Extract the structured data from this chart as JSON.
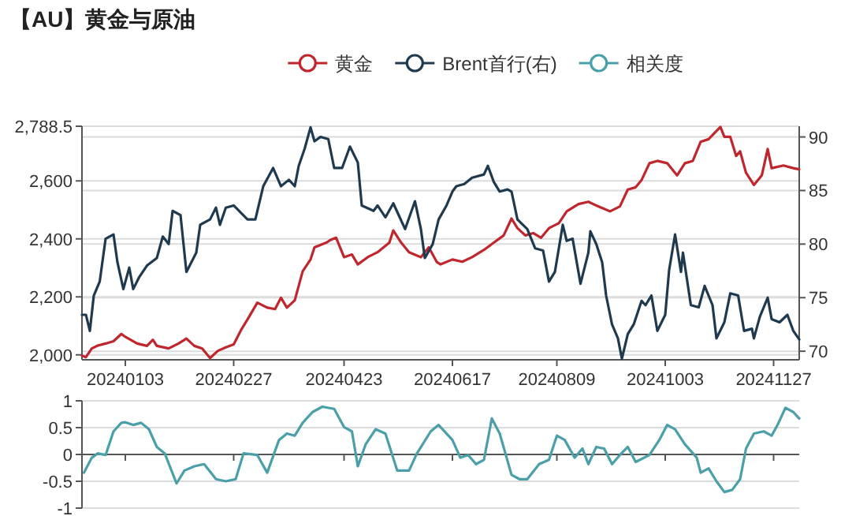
{
  "chart_data": [
    {
      "type": "line",
      "title": "【AU】黄金与原油",
      "legend": "top",
      "grid": "y",
      "tick_labels": "xy",
      "xlim": [
        "2023-12-12",
        "2024-12-10"
      ],
      "xticks": [
        {
          "value": "2024-01-03",
          "label": "20240103"
        },
        {
          "value": "2024-02-27",
          "label": "20240227"
        },
        {
          "value": "2024-04-23",
          "label": "20240423"
        },
        {
          "value": "2024-06-17",
          "label": "20240617"
        },
        {
          "value": "2024-08-09",
          "label": "20240809"
        },
        {
          "value": "2024-10-03",
          "label": "20241003"
        },
        {
          "value": "2024-11-27",
          "label": "20241127"
        }
      ],
      "ylim": [
        1983,
        2788.5
      ],
      "yticks": [
        {
          "value": 2000,
          "label": "2,000"
        },
        {
          "value": 2200,
          "label": "2,200"
        },
        {
          "value": 2400,
          "label": "2,400"
        },
        {
          "value": 2600,
          "label": "2,600"
        },
        {
          "value": 2788.5,
          "label": "2,788.5"
        }
      ],
      "y2lim": [
        69.2,
        91
      ],
      "y2ticks": [
        70,
        75,
        80,
        85,
        90
      ],
      "series": [
        {
          "name": "黄金",
          "color": "#c0262d",
          "axis": "y",
          "x": [
            "2023-12-12",
            "2023-12-14",
            "2023-12-17",
            "2023-12-20",
            "2023-12-24",
            "2023-12-28",
            "2024-01-01",
            "2024-01-03",
            "2024-01-09",
            "2024-01-14",
            "2024-01-17",
            "2024-01-19",
            "2024-01-25",
            "2024-01-30",
            "2024-02-03",
            "2024-02-07",
            "2024-02-11",
            "2024-02-15",
            "2024-02-19",
            "2024-02-23",
            "2024-02-27",
            "2024-03-02",
            "2024-03-05",
            "2024-03-10",
            "2024-03-15",
            "2024-03-19",
            "2024-03-22",
            "2024-03-25",
            "2024-03-29",
            "2024-04-02",
            "2024-04-06",
            "2024-04-08",
            "2024-04-14",
            "2024-04-16",
            "2024-04-19",
            "2024-04-23",
            "2024-04-27",
            "2024-04-30",
            "2024-05-05",
            "2024-05-10",
            "2024-05-16",
            "2024-05-18",
            "2024-05-22",
            "2024-05-26",
            "2024-06-01",
            "2024-06-05",
            "2024-06-09",
            "2024-06-11",
            "2024-06-17",
            "2024-06-22",
            "2024-06-27",
            "2024-07-03",
            "2024-07-08",
            "2024-07-13",
            "2024-07-17",
            "2024-07-20",
            "2024-07-24",
            "2024-07-28",
            "2024-08-01",
            "2024-08-05",
            "2024-08-10",
            "2024-08-14",
            "2024-08-20",
            "2024-08-25",
            "2024-08-30",
            "2024-09-05",
            "2024-09-10",
            "2024-09-14",
            "2024-09-18",
            "2024-09-21",
            "2024-09-25",
            "2024-09-29",
            "2024-10-04",
            "2024-10-09",
            "2024-10-13",
            "2024-10-17",
            "2024-10-21",
            "2024-10-25",
            "2024-10-31",
            "2024-11-02",
            "2024-11-05",
            "2024-11-08",
            "2024-11-10",
            "2024-11-13",
            "2024-11-17",
            "2024-11-21",
            "2024-11-24",
            "2024-11-26",
            "2024-12-02",
            "2024-12-07",
            "2024-12-10"
          ],
          "values": [
            1997,
            1992,
            2022,
            2032,
            2039,
            2047,
            2072,
            2062,
            2039,
            2031,
            2052,
            2031,
            2022,
            2039,
            2056,
            2031,
            2022,
            1989,
            2014,
            2026,
            2036,
            2089,
            2122,
            2180,
            2163,
            2158,
            2197,
            2163,
            2188,
            2288,
            2329,
            2371,
            2387,
            2396,
            2404,
            2337,
            2346,
            2312,
            2337,
            2354,
            2387,
            2429,
            2387,
            2354,
            2337,
            2371,
            2321,
            2312,
            2329,
            2321,
            2337,
            2362,
            2387,
            2412,
            2470,
            2437,
            2412,
            2420,
            2404,
            2437,
            2454,
            2495,
            2520,
            2528,
            2512,
            2495,
            2512,
            2570,
            2578,
            2603,
            2661,
            2669,
            2661,
            2619,
            2661,
            2669,
            2735,
            2744,
            2786,
            2752,
            2752,
            2686,
            2702,
            2628,
            2586,
            2619,
            2710,
            2644,
            2653,
            2644,
            2640
          ]
        },
        {
          "name": "Brent首行(右)",
          "color": "#1f3a4f",
          "axis": "y2",
          "x": [
            "2023-12-12",
            "2023-12-14",
            "2023-12-16",
            "2023-12-18",
            "2023-12-21",
            "2023-12-24",
            "2023-12-26",
            "2023-12-28",
            "2023-12-30",
            "2024-01-02",
            "2024-01-05",
            "2024-01-07",
            "2024-01-10",
            "2024-01-14",
            "2024-01-19",
            "2024-01-22",
            "2024-01-25",
            "2024-01-27",
            "2024-01-31",
            "2024-02-03",
            "2024-02-08",
            "2024-02-10",
            "2024-02-15",
            "2024-02-18",
            "2024-02-20",
            "2024-02-23",
            "2024-02-27",
            "2024-03-05",
            "2024-03-09",
            "2024-03-13",
            "2024-03-18",
            "2024-03-22",
            "2024-03-26",
            "2024-03-29",
            "2024-03-31",
            "2024-04-03",
            "2024-04-06",
            "2024-04-08",
            "2024-04-11",
            "2024-04-15",
            "2024-04-18",
            "2024-04-22",
            "2024-04-26",
            "2024-04-30",
            "2024-05-02",
            "2024-05-08",
            "2024-05-10",
            "2024-05-14",
            "2024-05-18",
            "2024-05-24",
            "2024-05-29",
            "2024-06-01",
            "2024-06-03",
            "2024-06-07",
            "2024-06-10",
            "2024-06-14",
            "2024-06-17",
            "2024-06-19",
            "2024-06-23",
            "2024-06-27",
            "2024-07-03",
            "2024-07-05",
            "2024-07-08",
            "2024-07-11",
            "2024-07-15",
            "2024-07-17",
            "2024-07-20",
            "2024-07-25",
            "2024-07-29",
            "2024-08-02",
            "2024-08-05",
            "2024-08-08",
            "2024-08-12",
            "2024-08-14",
            "2024-08-17",
            "2024-08-21",
            "2024-08-25",
            "2024-08-26",
            "2024-08-29",
            "2024-09-01",
            "2024-09-03",
            "2024-09-06",
            "2024-09-09",
            "2024-09-11",
            "2024-09-14",
            "2024-09-17",
            "2024-09-21",
            "2024-09-23",
            "2024-09-26",
            "2024-09-29",
            "2024-10-03",
            "2024-10-05",
            "2024-10-08",
            "2024-10-11",
            "2024-10-12",
            "2024-10-16",
            "2024-10-20",
            "2024-10-23",
            "2024-10-27",
            "2024-10-29",
            "2024-11-02",
            "2024-11-05",
            "2024-11-09",
            "2024-11-12",
            "2024-11-16",
            "2024-11-17",
            "2024-11-20",
            "2024-11-24",
            "2024-11-26",
            "2024-11-30",
            "2024-12-04",
            "2024-12-07",
            "2024-12-10"
          ],
          "values": [
            73.4,
            73.4,
            71.9,
            75.2,
            76.5,
            80.5,
            80.7,
            80.9,
            78.3,
            75.8,
            77.8,
            75.8,
            76.9,
            78.0,
            78.7,
            80.7,
            80.0,
            83.1,
            82.7,
            77.4,
            79.2,
            81.8,
            82.3,
            83.4,
            81.8,
            83.4,
            83.6,
            82.3,
            82.3,
            85.4,
            87.1,
            85.4,
            86.0,
            85.4,
            87.3,
            88.9,
            90.9,
            89.6,
            90.0,
            89.8,
            87.1,
            87.1,
            89.1,
            87.6,
            83.6,
            83.1,
            83.6,
            82.5,
            83.8,
            81.4,
            84.0,
            81.4,
            78.7,
            80.0,
            82.3,
            83.6,
            84.9,
            85.4,
            85.6,
            86.2,
            86.5,
            87.3,
            85.8,
            84.9,
            85.1,
            84.9,
            82.3,
            81.4,
            79.6,
            79.4,
            76.5,
            77.4,
            81.8,
            80.3,
            80.5,
            76.3,
            79.2,
            81.2,
            80.0,
            78.3,
            75.2,
            72.5,
            71.2,
            69.3,
            71.6,
            72.5,
            74.7,
            74.3,
            75.2,
            71.9,
            73.4,
            77.6,
            80.9,
            77.4,
            79.2,
            74.3,
            74.1,
            76.1,
            74.3,
            71.2,
            72.7,
            75.4,
            75.2,
            71.9,
            72.1,
            71.2,
            73.2,
            75.0,
            73.0,
            72.7,
            73.4,
            71.9,
            71.1
          ]
        }
      ]
    },
    {
      "type": "line",
      "legend": "top",
      "grid": "y",
      "tick_labels": "y",
      "xlim": [
        "2023-12-12",
        "2024-12-10"
      ],
      "xticks": [
        {
          "value": "2024-01-03",
          "label": null
        },
        {
          "value": "2024-02-27",
          "label": null
        },
        {
          "value": "2024-04-23",
          "label": null
        },
        {
          "value": "2024-06-17",
          "label": null
        },
        {
          "value": "2024-08-09",
          "label": null
        },
        {
          "value": "2024-10-03",
          "label": null
        },
        {
          "value": "2024-11-27",
          "label": null
        }
      ],
      "ylim": [
        -1,
        1
      ],
      "yticks": [
        -1,
        -0.5,
        0,
        0.5,
        1
      ],
      "series": [
        {
          "name": "相关度",
          "color": "#4a9fa8",
          "x": [
            "2023-12-13",
            "2023-12-17",
            "2023-12-20",
            "2023-12-24",
            "2023-12-28",
            "2024-01-01",
            "2024-01-03",
            "2024-01-07",
            "2024-01-11",
            "2024-01-15",
            "2024-01-19",
            "2024-01-23",
            "2024-01-29",
            "2024-02-02",
            "2024-02-07",
            "2024-02-12",
            "2024-02-18",
            "2024-02-23",
            "2024-02-28",
            "2024-03-03",
            "2024-03-10",
            "2024-03-15",
            "2024-03-21",
            "2024-03-25",
            "2024-03-29",
            "2024-04-02",
            "2024-04-07",
            "2024-04-12",
            "2024-04-18",
            "2024-04-23",
            "2024-04-27",
            "2024-04-30",
            "2024-05-04",
            "2024-05-09",
            "2024-05-14",
            "2024-05-20",
            "2024-05-26",
            "2024-05-30",
            "2024-06-06",
            "2024-06-10",
            "2024-06-11",
            "2024-06-17",
            "2024-06-21",
            "2024-06-25",
            "2024-06-29",
            "2024-07-03",
            "2024-07-07",
            "2024-07-11",
            "2024-07-17",
            "2024-07-21",
            "2024-07-25",
            "2024-07-31",
            "2024-08-05",
            "2024-08-09",
            "2024-08-13",
            "2024-08-18",
            "2024-08-22",
            "2024-08-25",
            "2024-08-29",
            "2024-09-02",
            "2024-09-06",
            "2024-09-10",
            "2024-09-14",
            "2024-09-18",
            "2024-09-25",
            "2024-09-30",
            "2024-10-04",
            "2024-10-08",
            "2024-10-13",
            "2024-10-19",
            "2024-10-21",
            "2024-10-25",
            "2024-10-29",
            "2024-11-02",
            "2024-11-06",
            "2024-11-10",
            "2024-11-13",
            "2024-11-17",
            "2024-11-22",
            "2024-11-26",
            "2024-11-29",
            "2024-12-03",
            "2024-12-07",
            "2024-12-10"
          ],
          "values": [
            -0.34,
            -0.06,
            0.02,
            -0.01,
            0.43,
            0.59,
            0.6,
            0.55,
            0.59,
            0.47,
            0.14,
            0.02,
            -0.54,
            -0.3,
            -0.22,
            -0.18,
            -0.46,
            -0.5,
            -0.46,
            0.02,
            -0.01,
            -0.34,
            0.27,
            0.39,
            0.35,
            0.59,
            0.79,
            0.89,
            0.85,
            0.51,
            0.43,
            -0.22,
            0.19,
            0.47,
            0.39,
            -0.3,
            -0.3,
            0.02,
            0.43,
            0.55,
            0.51,
            0.27,
            -0.06,
            -0.01,
            -0.18,
            -0.1,
            0.67,
            0.39,
            -0.38,
            -0.46,
            -0.46,
            -0.18,
            -0.1,
            0.35,
            0.27,
            -0.06,
            0.11,
            -0.18,
            0.14,
            0.11,
            -0.18,
            -0.01,
            0.14,
            -0.14,
            -0.01,
            0.27,
            0.55,
            0.47,
            0.19,
            -0.06,
            -0.34,
            -0.26,
            -0.5,
            -0.7,
            -0.66,
            -0.46,
            0.11,
            0.39,
            0.43,
            0.35,
            0.55,
            0.87,
            0.79,
            0.67
          ]
        }
      ]
    }
  ]
}
